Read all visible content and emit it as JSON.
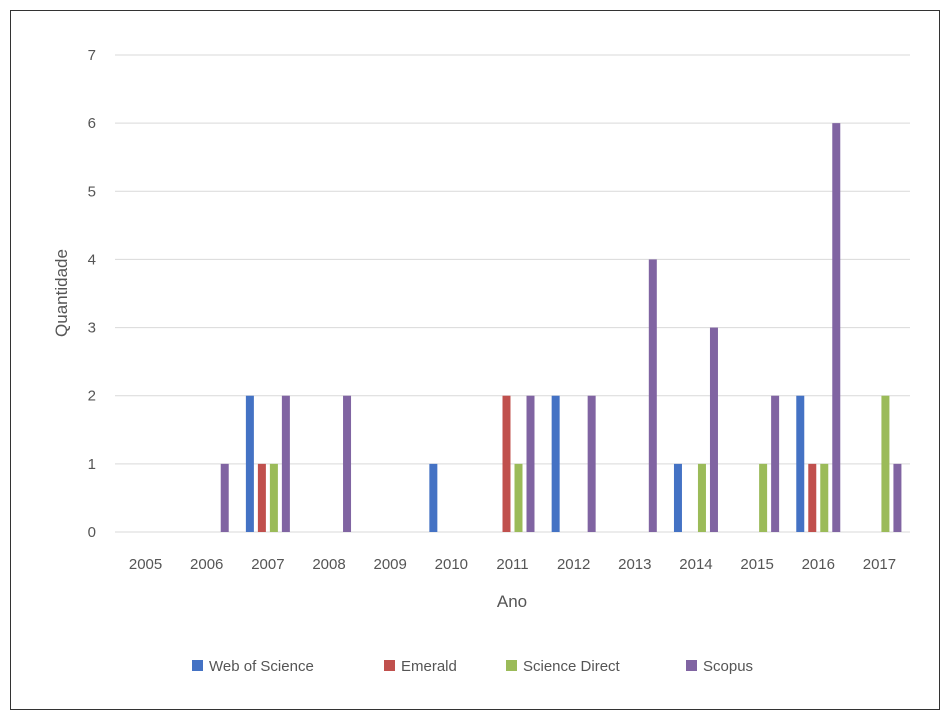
{
  "chart_data": {
    "type": "bar",
    "title": "",
    "xlabel": "Ano",
    "ylabel": "Quantidade",
    "ylim": [
      0,
      7
    ],
    "yticks": [
      0,
      1,
      2,
      3,
      4,
      5,
      6,
      7
    ],
    "grid": true,
    "legend_position": "bottom",
    "categories": [
      "2005",
      "2006",
      "2007",
      "2008",
      "2009",
      "2010",
      "2011",
      "2012",
      "2013",
      "2014",
      "2015",
      "2016",
      "2017"
    ],
    "series": [
      {
        "name": "Web of Science",
        "color": "#4472c4",
        "values": [
          0,
          0,
          2,
          0,
          0,
          1,
          0,
          2,
          0,
          1,
          0,
          2,
          0
        ]
      },
      {
        "name": "Emerald",
        "color": "#c0504d",
        "values": [
          0,
          0,
          1,
          0,
          0,
          0,
          2,
          0,
          0,
          0,
          0,
          1,
          0
        ]
      },
      {
        "name": "Science Direct",
        "color": "#9bbb59",
        "values": [
          0,
          0,
          1,
          0,
          0,
          0,
          1,
          0,
          0,
          1,
          1,
          1,
          2
        ]
      },
      {
        "name": "Scopus",
        "color": "#8064a2",
        "values": [
          0,
          1,
          2,
          2,
          0,
          0,
          2,
          2,
          4,
          3,
          2,
          6,
          1
        ]
      }
    ]
  }
}
